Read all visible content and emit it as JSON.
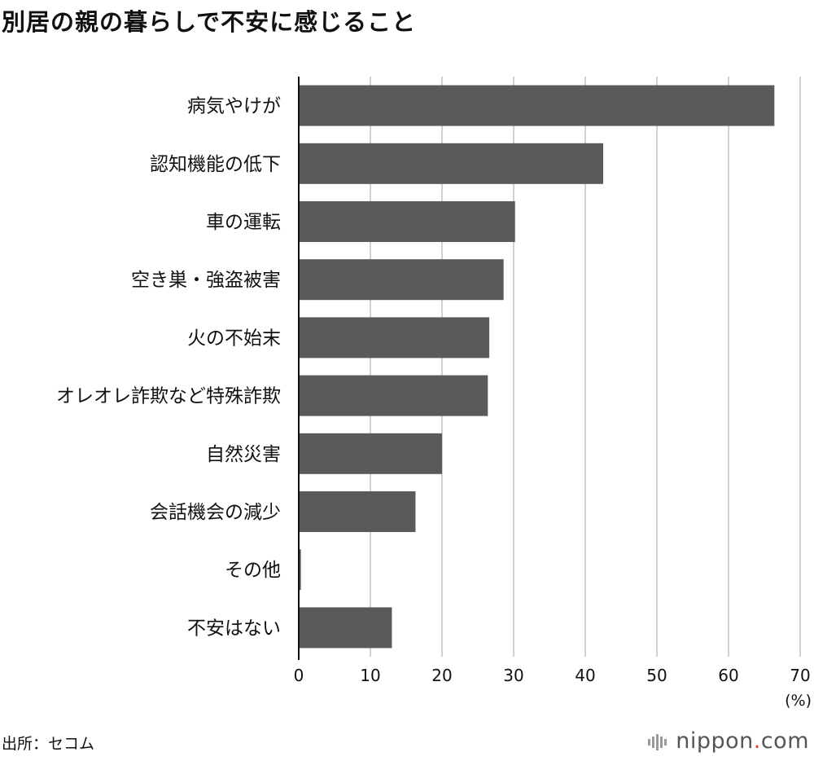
{
  "chart_data": {
    "type": "bar",
    "orientation": "horizontal",
    "title": "別居の親の暮らしで不安に感じること",
    "categories": [
      "病気やけが",
      "認知機能の低下",
      "車の運転",
      "空き巣・強盗被害",
      "火の不始末",
      "オレオレ詐欺など特殊詐欺",
      "自然災害",
      "会話機会の減少",
      "その他",
      "不安はない"
    ],
    "values": [
      66.4,
      42.5,
      30.2,
      28.6,
      26.6,
      26.4,
      20.0,
      16.3,
      0.3,
      13.0
    ],
    "xlim": [
      0,
      70
    ],
    "xticks": [
      0,
      10,
      20,
      30,
      40,
      50,
      60,
      70
    ],
    "xunit": "(%)",
    "grid": true,
    "bar_color": "#5a5a5a",
    "grid_color": "#d0d0d0"
  },
  "source": "出所：セコム",
  "logo": {
    "name": "nippon",
    "dot": ".",
    "suffix": "com"
  }
}
